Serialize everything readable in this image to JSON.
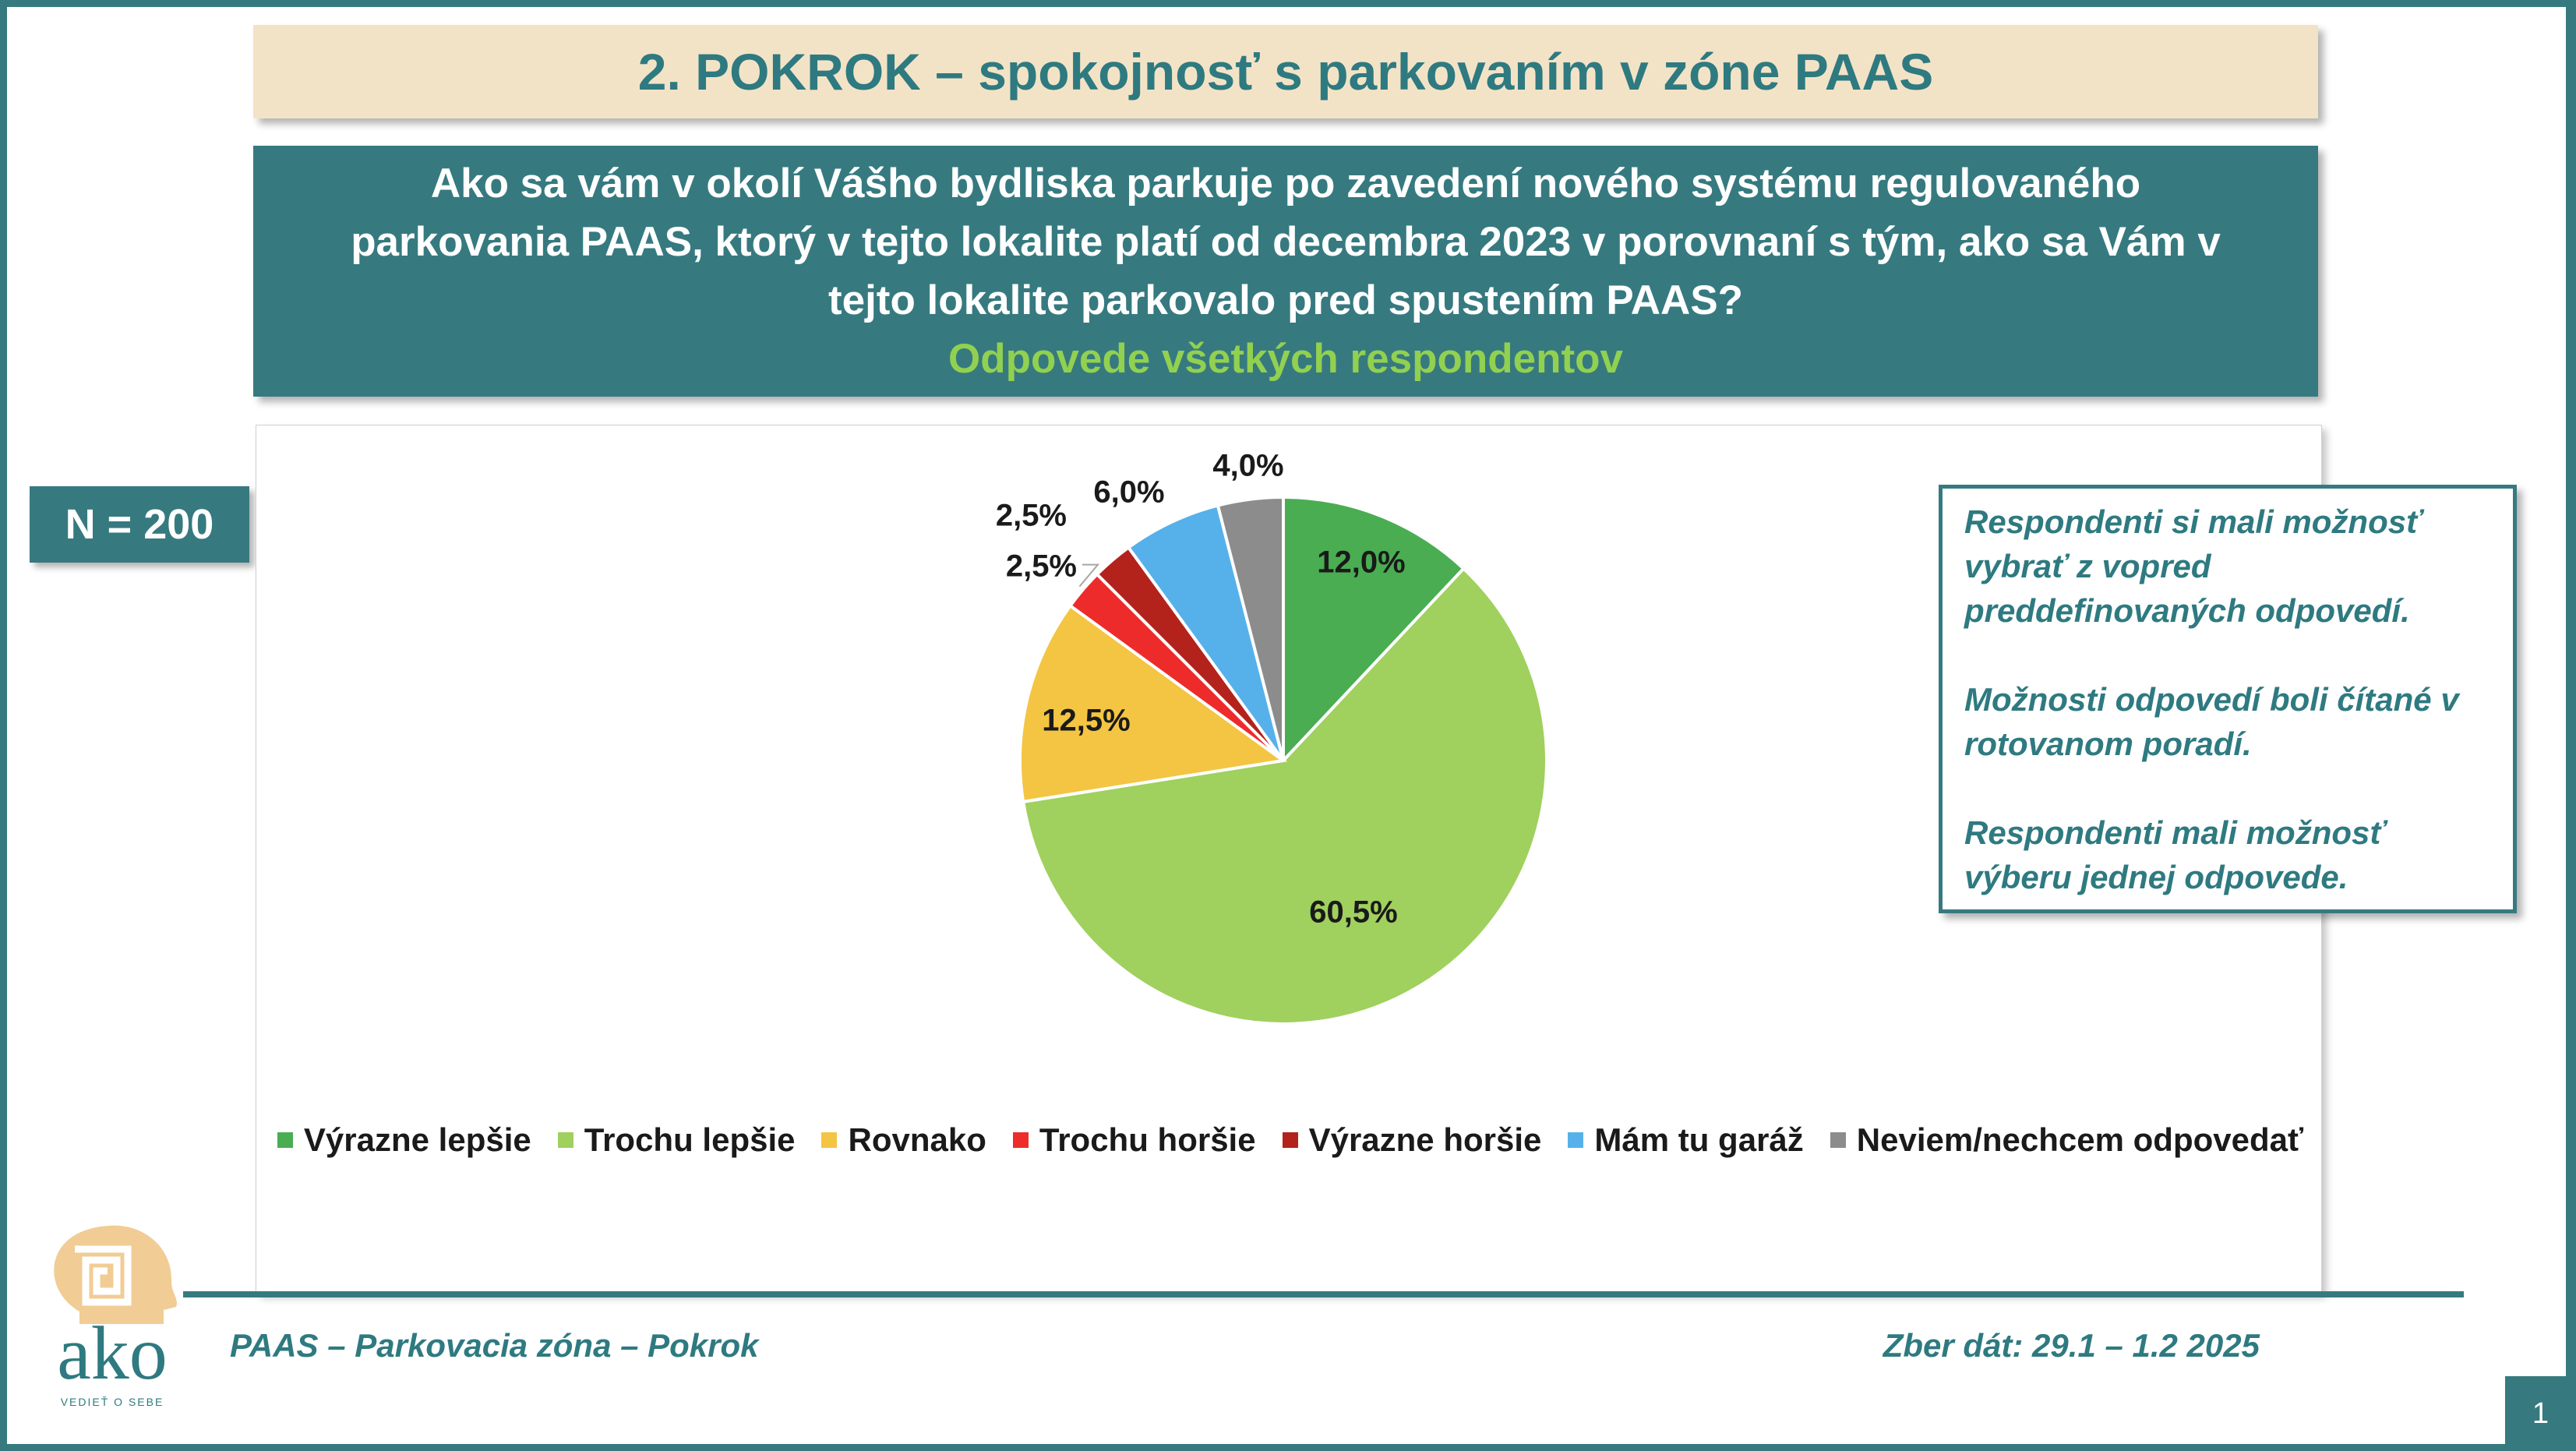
{
  "header": {
    "title": "2. POKROK – spokojnosť s parkovaním v zóne PAAS"
  },
  "question": {
    "text": "Ako sa vám v okolí Vášho bydliska parkuje po zavedení nového systému regulovaného parkovania PAAS, ktorý v tejto lokalite platí od decembra 2023 v porovnaní s tým, ako sa Vám v tejto lokalite parkovalo pred spustením PAAS?",
    "subtitle": "Odpovede všetkých respondentov"
  },
  "sample": {
    "label": "N = 200"
  },
  "note": {
    "paragraphs": [
      "Respondenti si mali možnosť vybrať z vopred preddefinovaných odpovedí.",
      "Možnosti odpovedí boli čítané v rotovanom poradí.",
      "Respondenti mali možnosť výberu jednej odpovede."
    ]
  },
  "footer": {
    "left": "PAAS – Parkovacia zóna – Pokrok",
    "right": "Zber dát: 29.1 – 1.2 2025",
    "page": "1"
  },
  "logo": {
    "word": "ako",
    "tagline": "VEDIEŤ O SEBE",
    "registered": "®"
  },
  "colors": {
    "teal": "#367a80",
    "beige": "#f3e3c6",
    "light_green_text": "#92d050"
  },
  "chart_data": {
    "type": "pie",
    "title": "",
    "categories": [
      "Výrazne lepšie",
      "Trochu lepšie",
      "Rovnako",
      "Trochu horšie",
      "Výrazne horšie",
      "Mám tu garáž",
      "Neviem/nechcem odpovedať"
    ],
    "values": [
      12.0,
      60.5,
      12.5,
      2.5,
      2.5,
      6.0,
      4.0
    ],
    "labels": [
      "12,0%",
      "60,5%",
      "12,5%",
      "2,5%",
      "2,5%",
      "6,0%",
      "4,0%"
    ],
    "colors": [
      "#4aad52",
      "#a0d05e",
      "#f4c542",
      "#ee2b2b",
      "#b4221c",
      "#56b1ea",
      "#8c8c8c"
    ],
    "legend_position": "bottom"
  }
}
